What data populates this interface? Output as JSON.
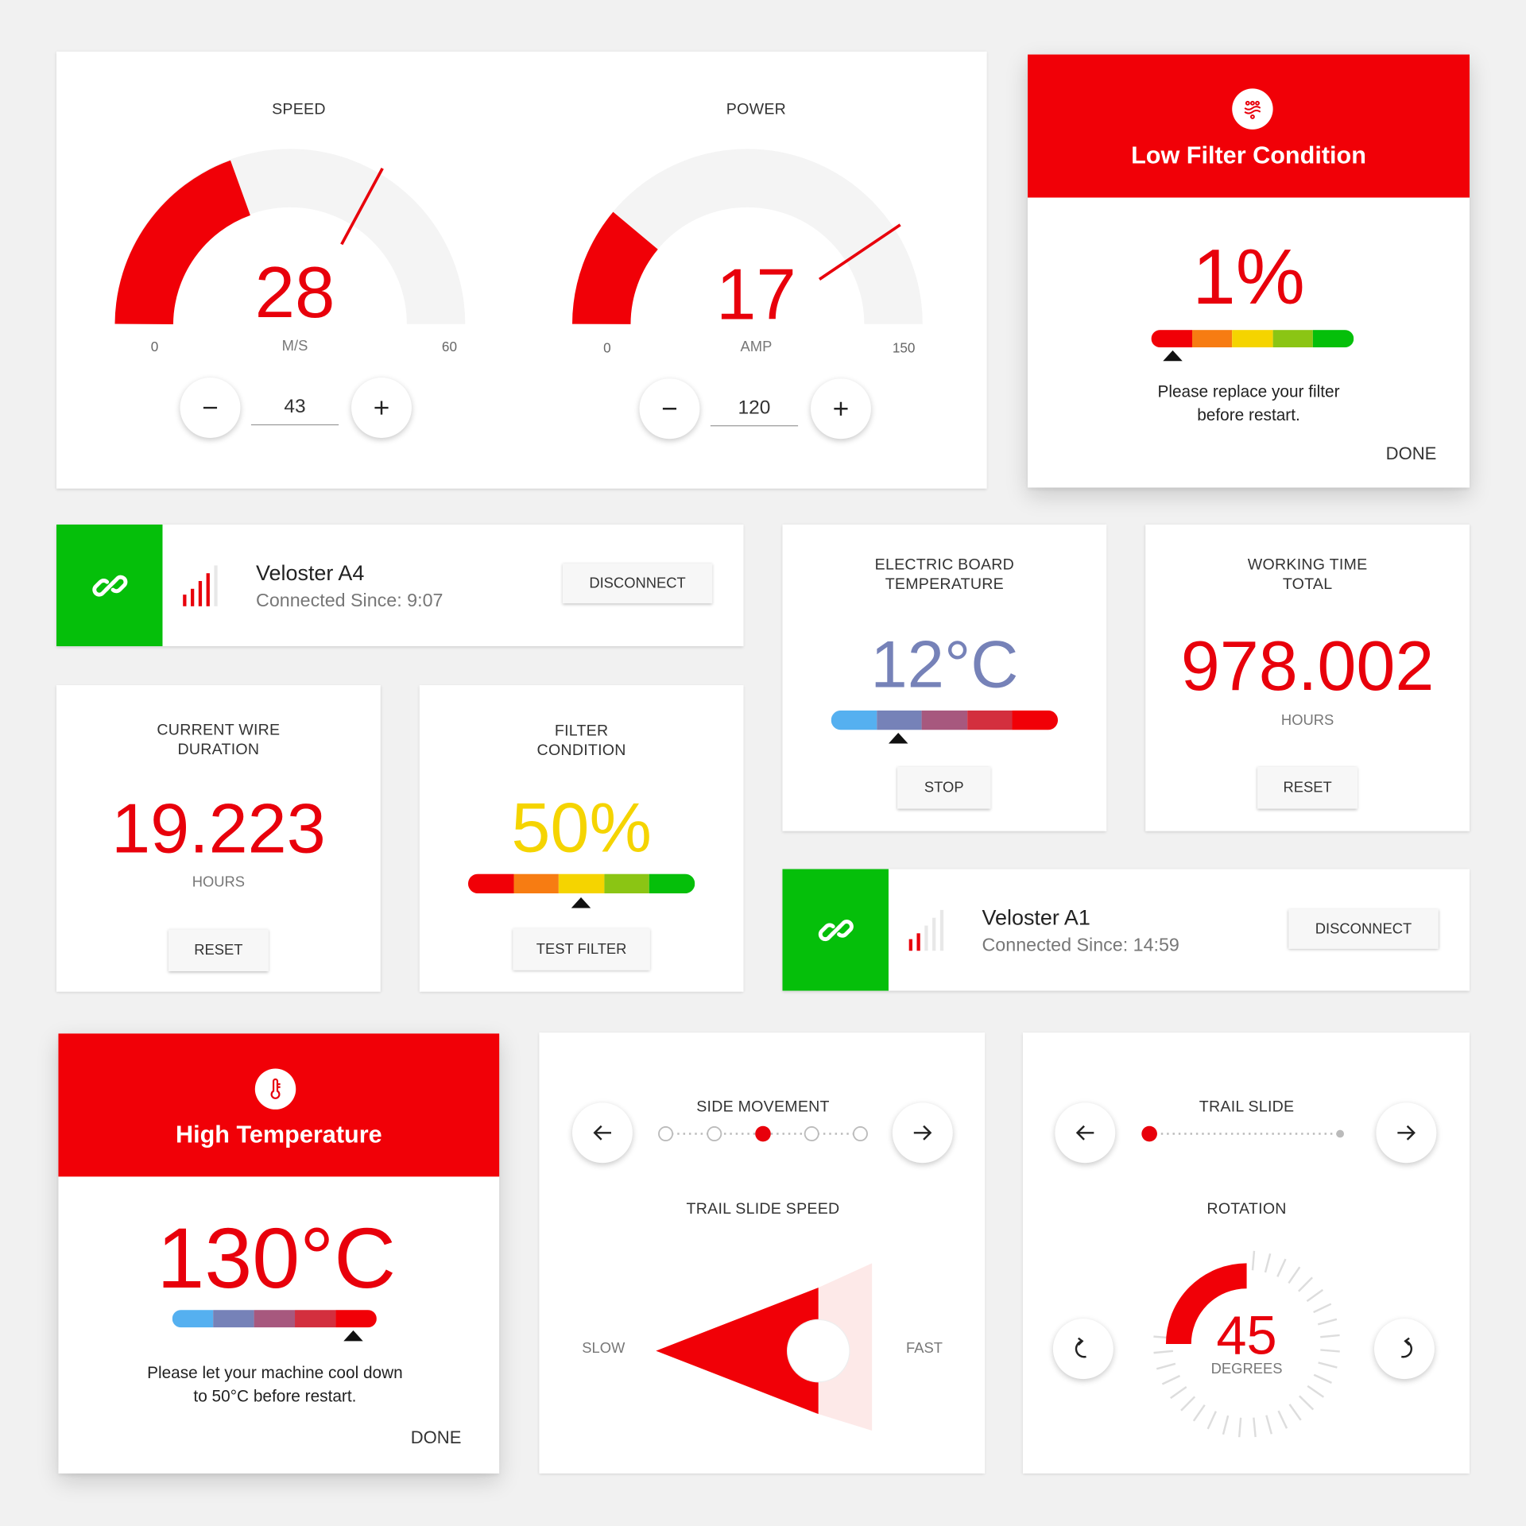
{
  "speed": {
    "title": "SPEED",
    "value": "28",
    "unit": "M/S",
    "min": "0",
    "max": "60",
    "input": "43",
    "level": 0.2,
    "needle": 0.7
  },
  "power": {
    "title": "POWER",
    "value": "17",
    "unit": "AMP",
    "min": "0",
    "max": "150",
    "input": "120",
    "level": 0.16,
    "needle": 0.85
  },
  "filter_alert": {
    "title": "Low Filter Condition",
    "value": "1%",
    "message_l1": "Please replace your filter",
    "message_l2": "before restart.",
    "done": "DONE"
  },
  "device_a4": {
    "name": "Veloster A4",
    "status": "Connected Since: 9:07",
    "button": "DISCONNECT"
  },
  "device_a1": {
    "name": "Veloster A1",
    "status": "Connected Since: 14:59",
    "button": "DISCONNECT"
  },
  "board_temp": {
    "title_l1": "ELECTRIC BOARD",
    "title_l2": "TEMPERATURE",
    "value": "12°C",
    "button": "STOP"
  },
  "working_time": {
    "title_l1": "WORKING TIME",
    "title_l2": "TOTAL",
    "value": "978.002",
    "unit": "HOURS",
    "button": "RESET"
  },
  "wire_duration": {
    "title_l1": "CURRENT WIRE",
    "title_l2": "DURATION",
    "value": "19.223",
    "unit": "HOURS",
    "button": "RESET"
  },
  "filter_condition": {
    "title_l1": "FILTER",
    "title_l2": "CONDITION",
    "value": "50%",
    "button": "TEST FILTER"
  },
  "temp_alert": {
    "title": "High Temperature",
    "value": "130°C",
    "message_l1": "Please let your machine cool down",
    "message_l2": "to 50°C before restart.",
    "done": "DONE"
  },
  "side_movement": {
    "title": "SIDE MOVEMENT",
    "positions": 5,
    "selected": 3
  },
  "trail_speed": {
    "title": "TRAIL SLIDE SPEED",
    "slow": "SLOW",
    "fast": "FAST"
  },
  "trail_slide": {
    "title": "TRAIL SLIDE"
  },
  "rotation": {
    "title": "ROTATION",
    "value": "45",
    "unit": "DEGREES"
  },
  "colors": {
    "accent": "#e8000b",
    "flag": "#f10007",
    "connected": "#05bf0a",
    "temp_blue": "#7682b8",
    "filter_yellow": "#f5d400"
  }
}
